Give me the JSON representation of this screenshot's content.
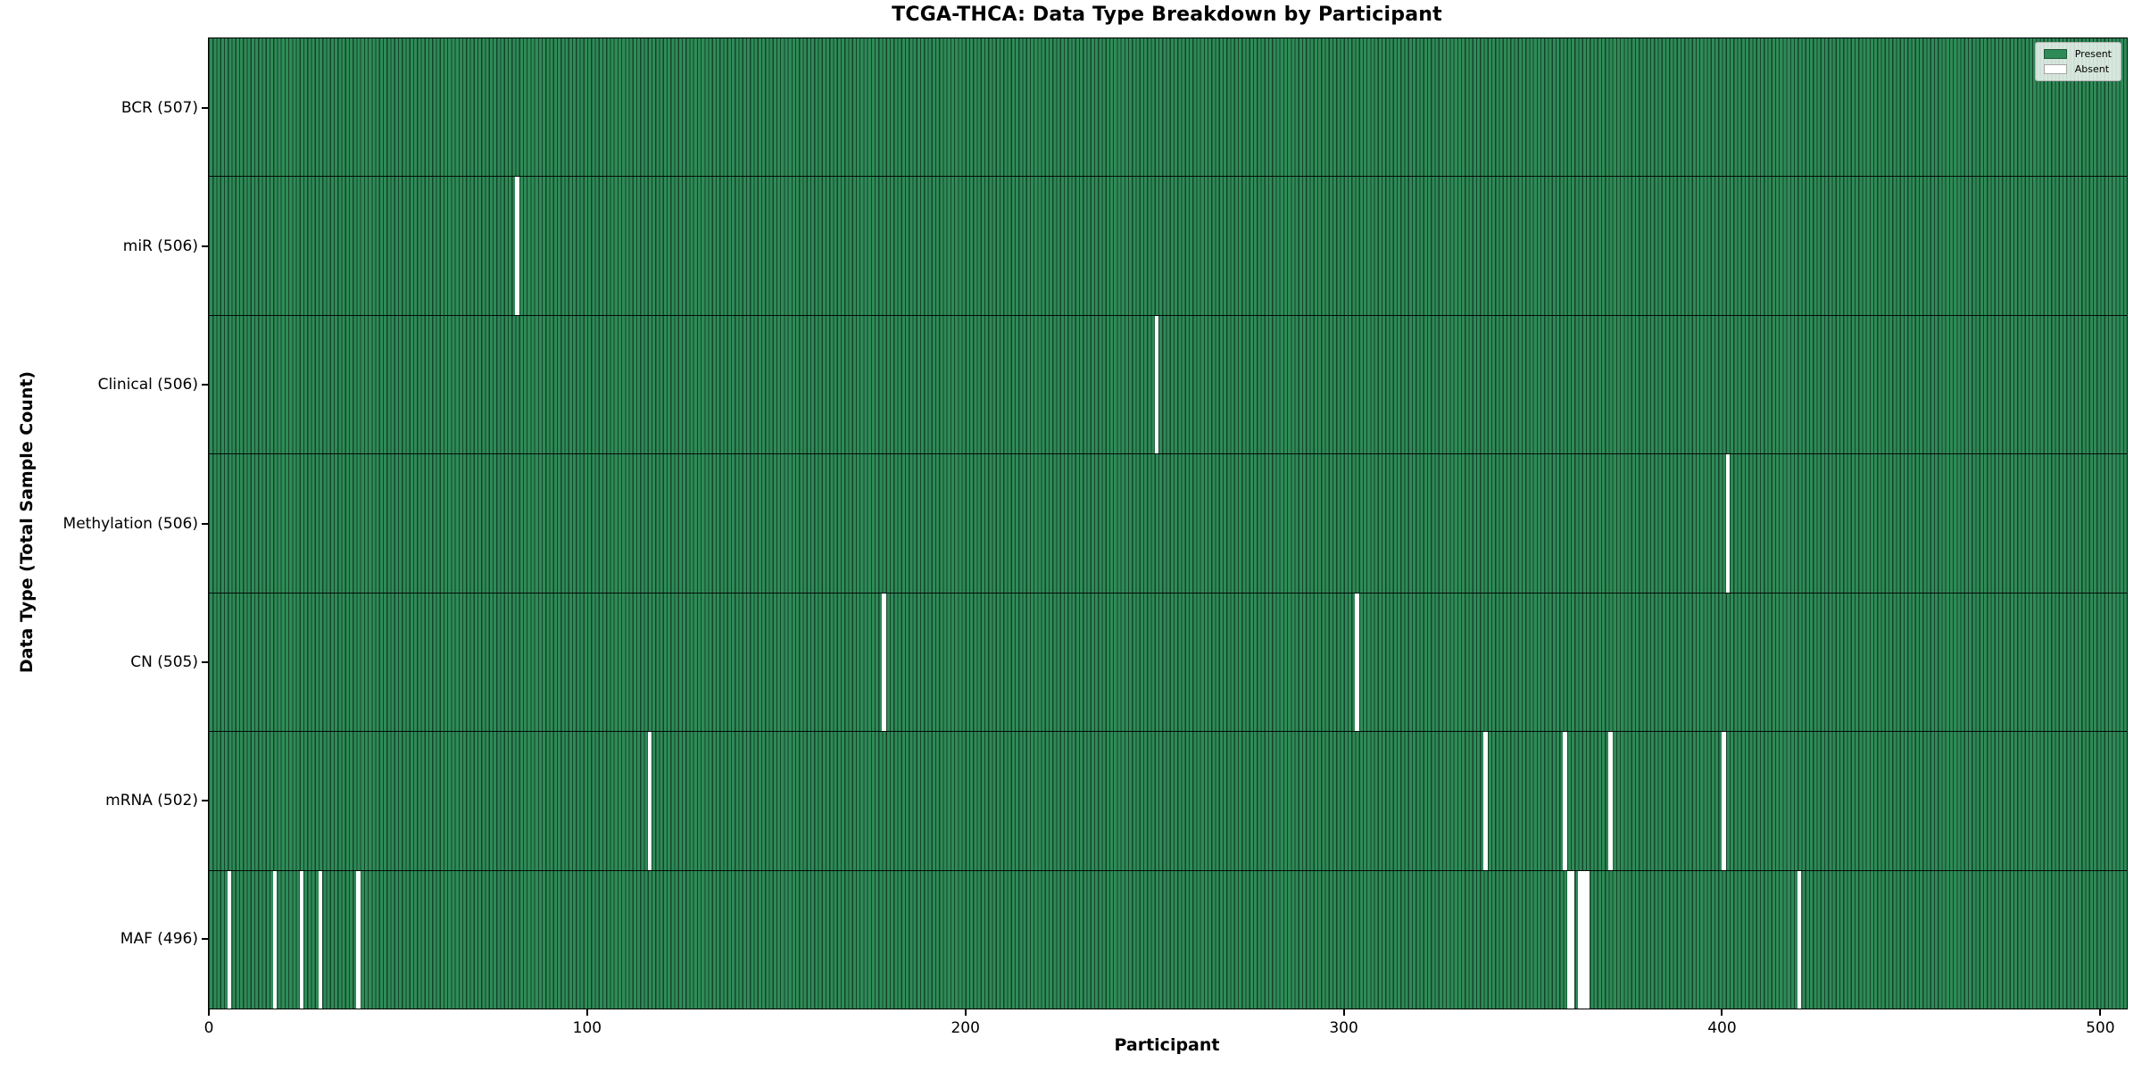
{
  "chart_data": {
    "type": "heatmap",
    "title": "TCGA-THCA: Data Type Breakdown by Participant",
    "xlabel": "Participant",
    "ylabel": "Data Type (Total Sample Count)",
    "x_ticks": [
      0,
      100,
      200,
      300,
      400,
      500
    ],
    "x_range": [
      0,
      507
    ],
    "total_participants": 507,
    "grid": false,
    "legend": {
      "position": "upper-right",
      "entries": [
        {
          "label": "Present",
          "color": "#2e8b57"
        },
        {
          "label": "Absent",
          "color": "#ffffff"
        }
      ]
    },
    "colors": {
      "present": "#2e8b57",
      "absent": "#ffffff",
      "bar_edge": "#16432b",
      "row_separator": "#000000"
    },
    "rows": [
      {
        "label": "BCR (507)",
        "data_type": "BCR",
        "present_count": 507,
        "absent_participants": []
      },
      {
        "label": "miR (506)",
        "data_type": "miR",
        "present_count": 506,
        "absent_participants": [
          81
        ]
      },
      {
        "label": "Clinical (506)",
        "data_type": "Clinical",
        "present_count": 506,
        "absent_participants": [
          250
        ]
      },
      {
        "label": "Methylation (506)",
        "data_type": "Methylation",
        "present_count": 506,
        "absent_participants": [
          401
        ]
      },
      {
        "label": "CN (505)",
        "data_type": "CN",
        "present_count": 505,
        "absent_participants": [
          178,
          303
        ]
      },
      {
        "label": "mRNA (502)",
        "data_type": "mRNA",
        "present_count": 502,
        "absent_participants": [
          116,
          337,
          358,
          370,
          400
        ]
      },
      {
        "label": "MAF (496)",
        "data_type": "MAF",
        "present_count": 496,
        "absent_participants": [
          5,
          17,
          24,
          29,
          39,
          359,
          360,
          362,
          363,
          364,
          420
        ]
      }
    ]
  }
}
